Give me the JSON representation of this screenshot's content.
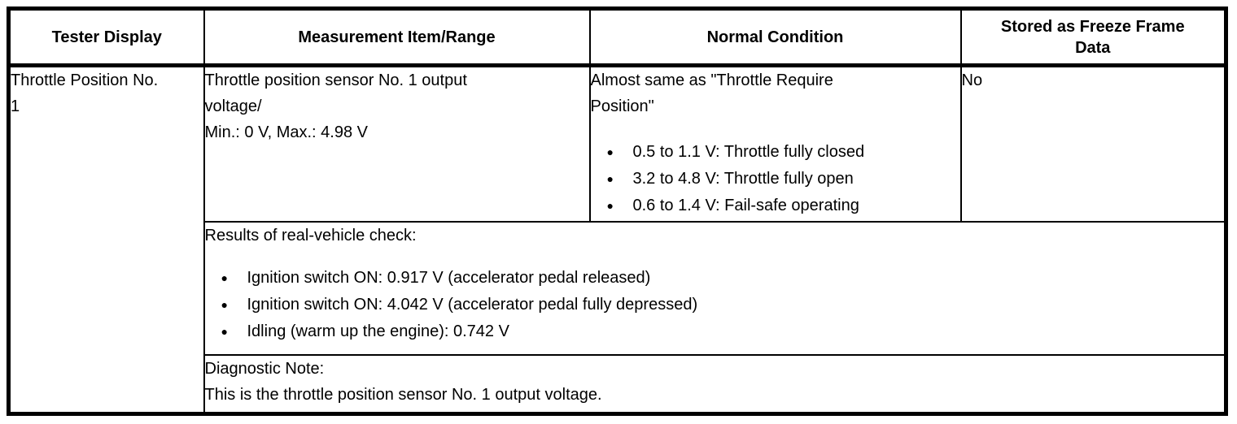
{
  "table": {
    "headers": [
      "Tester Display",
      "Measurement Item/Range",
      "Normal Condition",
      "Stored as Freeze Frame Data"
    ],
    "row": {
      "tester_display": {
        "lines": [
          "Throttle Position No.",
          "1"
        ]
      },
      "measurement": {
        "lines": [
          "Throttle position sensor No. 1 output",
          "voltage/",
          "Min.: 0 V, Max.: 4.98 V"
        ]
      },
      "normal_condition": {
        "intro_lines": [
          "Almost same as \"Throttle Require",
          "Position\""
        ],
        "bullets": [
          "0.5 to 1.1 V: Throttle fully closed",
          "3.2 to 4.8 V: Throttle fully open",
          "0.6 to 1.4 V: Fail-safe operating"
        ]
      },
      "freeze_frame": "No",
      "results": {
        "title": "Results of real-vehicle check:",
        "bullets": [
          "Ignition switch ON: 0.917 V (accelerator pedal released)",
          "Ignition switch ON: 4.042 V (accelerator pedal fully depressed)",
          "Idling (warm up the engine): 0.742 V"
        ]
      },
      "diagnostic": {
        "lines": [
          "Diagnostic Note:",
          "This is the throttle position sensor No. 1 output voltage."
        ]
      }
    },
    "colors": {
      "border": "#000000",
      "background": "#ffffff",
      "text": "#000000"
    }
  }
}
